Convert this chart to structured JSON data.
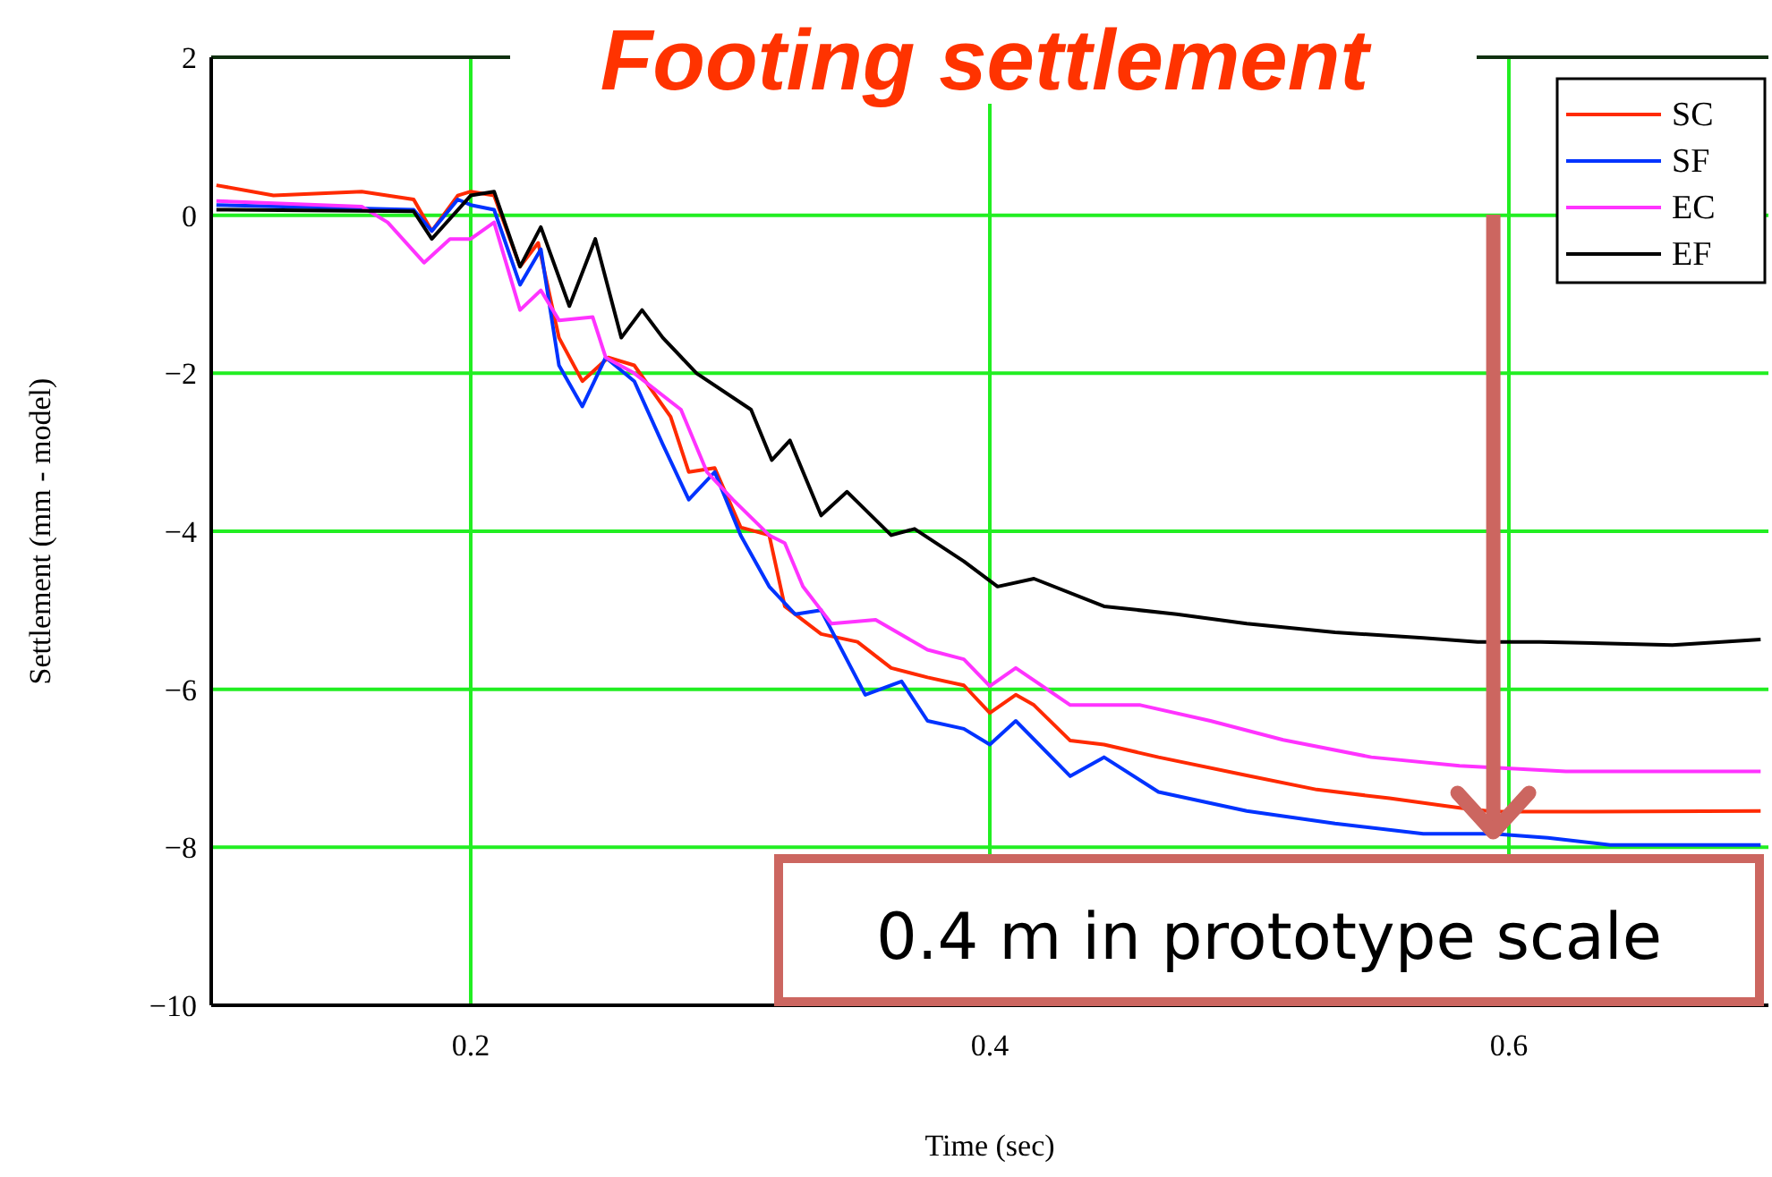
{
  "chart_data": {
    "type": "line",
    "title": "Footing settlement",
    "xlabel": "Time (sec)",
    "ylabel": "Settlement (mm - model)",
    "xlim": [
      0.1,
      0.7
    ],
    "xticks": [
      0.2,
      0.4,
      0.6
    ],
    "ylim": [
      -10,
      2
    ],
    "yticks": [
      -10,
      -8,
      -6,
      -4,
      -2,
      0,
      2
    ],
    "grid": true,
    "legend": "top right",
    "line_style": "solid",
    "marker": "none",
    "annotations": [
      {
        "text": "0.4 m in prototype scale",
        "x": 0.594,
        "y": -7.9
      }
    ],
    "series": [
      {
        "name": "SC",
        "color": "#ff2a00",
        "x": [
          0.102,
          0.124,
          0.158,
          0.178,
          0.185,
          0.195,
          0.2,
          0.209,
          0.219,
          0.226,
          0.234,
          0.243,
          0.253,
          0.263,
          0.277,
          0.284,
          0.294,
          0.304,
          0.315,
          0.321,
          0.335,
          0.349,
          0.362,
          0.376,
          0.39,
          0.4,
          0.41,
          0.417,
          0.431,
          0.444,
          0.465,
          0.499,
          0.526,
          0.554,
          0.574,
          0.581,
          0.594,
          0.629,
          0.697
        ],
        "values": [
          0.38,
          0.25,
          0.3,
          0.2,
          -0.2,
          0.25,
          0.3,
          0.25,
          -0.65,
          -0.35,
          -1.55,
          -2.1,
          -1.8,
          -1.9,
          -2.55,
          -3.25,
          -3.2,
          -3.95,
          -4.05,
          -4.95,
          -5.3,
          -5.4,
          -5.73,
          -5.85,
          -5.95,
          -6.3,
          -6.07,
          -6.2,
          -6.65,
          -6.7,
          -6.86,
          -7.09,
          -7.27,
          -7.38,
          -7.47,
          -7.5,
          -7.55,
          -7.55,
          -7.54
        ]
      },
      {
        "name": "SF",
        "color": "#0033ff",
        "x": [
          0.102,
          0.178,
          0.185,
          0.195,
          0.2,
          0.209,
          0.219,
          0.227,
          0.234,
          0.243,
          0.252,
          0.263,
          0.274,
          0.284,
          0.294,
          0.304,
          0.315,
          0.325,
          0.335,
          0.352,
          0.366,
          0.376,
          0.39,
          0.4,
          0.41,
          0.431,
          0.444,
          0.465,
          0.499,
          0.533,
          0.567,
          0.594,
          0.615,
          0.639,
          0.697
        ],
        "values": [
          0.13,
          0.07,
          -0.2,
          0.2,
          0.13,
          0.07,
          -0.88,
          -0.43,
          -1.9,
          -2.42,
          -1.8,
          -2.1,
          -2.9,
          -3.6,
          -3.25,
          -4.05,
          -4.7,
          -5.05,
          -5.0,
          -6.07,
          -5.9,
          -6.4,
          -6.5,
          -6.7,
          -6.4,
          -7.1,
          -6.86,
          -7.3,
          -7.54,
          -7.7,
          -7.83,
          -7.83,
          -7.88,
          -7.97,
          -7.97
        ]
      },
      {
        "name": "EC",
        "color": "#ff33ff",
        "x": [
          0.102,
          0.158,
          0.168,
          0.182,
          0.192,
          0.2,
          0.209,
          0.219,
          0.227,
          0.234,
          0.247,
          0.252,
          0.263,
          0.281,
          0.291,
          0.301,
          0.315,
          0.321,
          0.328,
          0.339,
          0.356,
          0.376,
          0.39,
          0.4,
          0.41,
          0.431,
          0.458,
          0.485,
          0.513,
          0.547,
          0.581,
          0.622,
          0.697
        ],
        "values": [
          0.18,
          0.11,
          -0.09,
          -0.6,
          -0.3,
          -0.3,
          -0.09,
          -1.2,
          -0.95,
          -1.33,
          -1.29,
          -1.8,
          -2.0,
          -2.46,
          -3.25,
          -3.6,
          -4.05,
          -4.15,
          -4.7,
          -5.17,
          -5.12,
          -5.5,
          -5.62,
          -5.96,
          -5.73,
          -6.2,
          -6.2,
          -6.4,
          -6.64,
          -6.86,
          -6.97,
          -7.04,
          -7.04
        ]
      },
      {
        "name": "EF",
        "color": "#000000",
        "x": [
          0.102,
          0.178,
          0.185,
          0.2,
          0.209,
          0.219,
          0.227,
          0.238,
          0.248,
          0.258,
          0.266,
          0.274,
          0.287,
          0.308,
          0.316,
          0.323,
          0.335,
          0.345,
          0.362,
          0.371,
          0.39,
          0.403,
          0.417,
          0.444,
          0.472,
          0.499,
          0.533,
          0.567,
          0.588,
          0.612,
          0.663,
          0.697
        ],
        "values": [
          0.07,
          0.05,
          -0.3,
          0.25,
          0.3,
          -0.65,
          -0.15,
          -1.15,
          -0.3,
          -1.55,
          -1.2,
          -1.55,
          -2.0,
          -2.46,
          -3.1,
          -2.85,
          -3.8,
          -3.5,
          -4.05,
          -3.97,
          -4.38,
          -4.7,
          -4.6,
          -4.95,
          -5.05,
          -5.17,
          -5.28,
          -5.35,
          -5.4,
          -5.4,
          -5.44,
          -5.37
        ]
      }
    ]
  }
}
